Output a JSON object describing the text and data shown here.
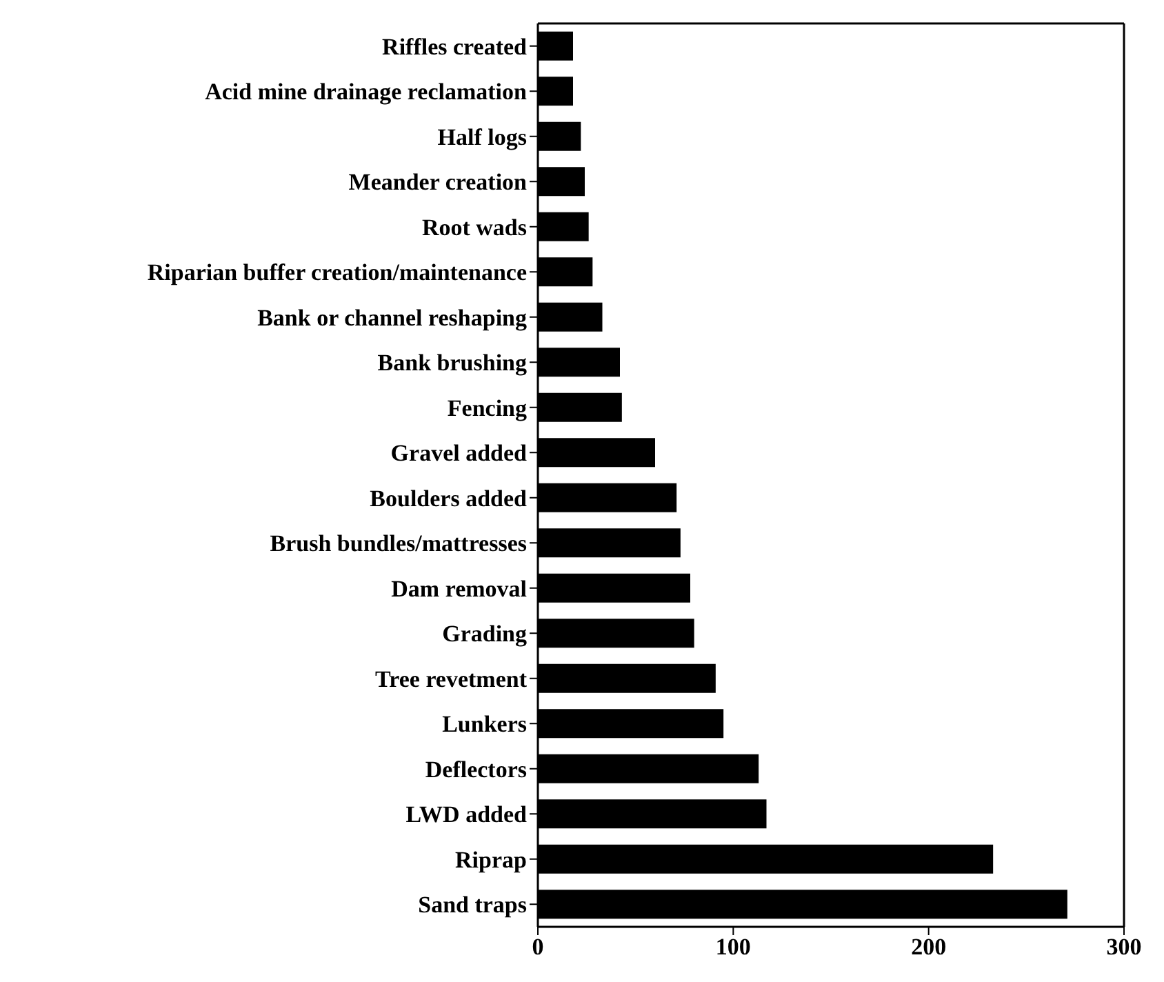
{
  "chart_data": {
    "type": "bar",
    "orientation": "horizontal",
    "categories": [
      "Riffles created",
      "Acid mine drainage reclamation",
      "Half logs",
      "Meander creation",
      "Root wads",
      "Riparian buffer creation/maintenance",
      "Bank or channel reshaping",
      "Bank brushing",
      "Fencing",
      "Gravel added",
      "Boulders added",
      "Brush bundles/mattresses",
      "Dam removal",
      "Grading",
      "Tree revetment",
      "Lunkers",
      "Deflectors",
      "LWD added",
      "Riprap",
      "Sand traps"
    ],
    "values": [
      18,
      18,
      22,
      24,
      26,
      28,
      33,
      42,
      43,
      60,
      71,
      73,
      78,
      80,
      91,
      95,
      113,
      117,
      233,
      271
    ],
    "color": "#000000",
    "xlim": [
      0,
      300
    ],
    "xticks": [
      0,
      100,
      200,
      300
    ],
    "grid": false
  }
}
